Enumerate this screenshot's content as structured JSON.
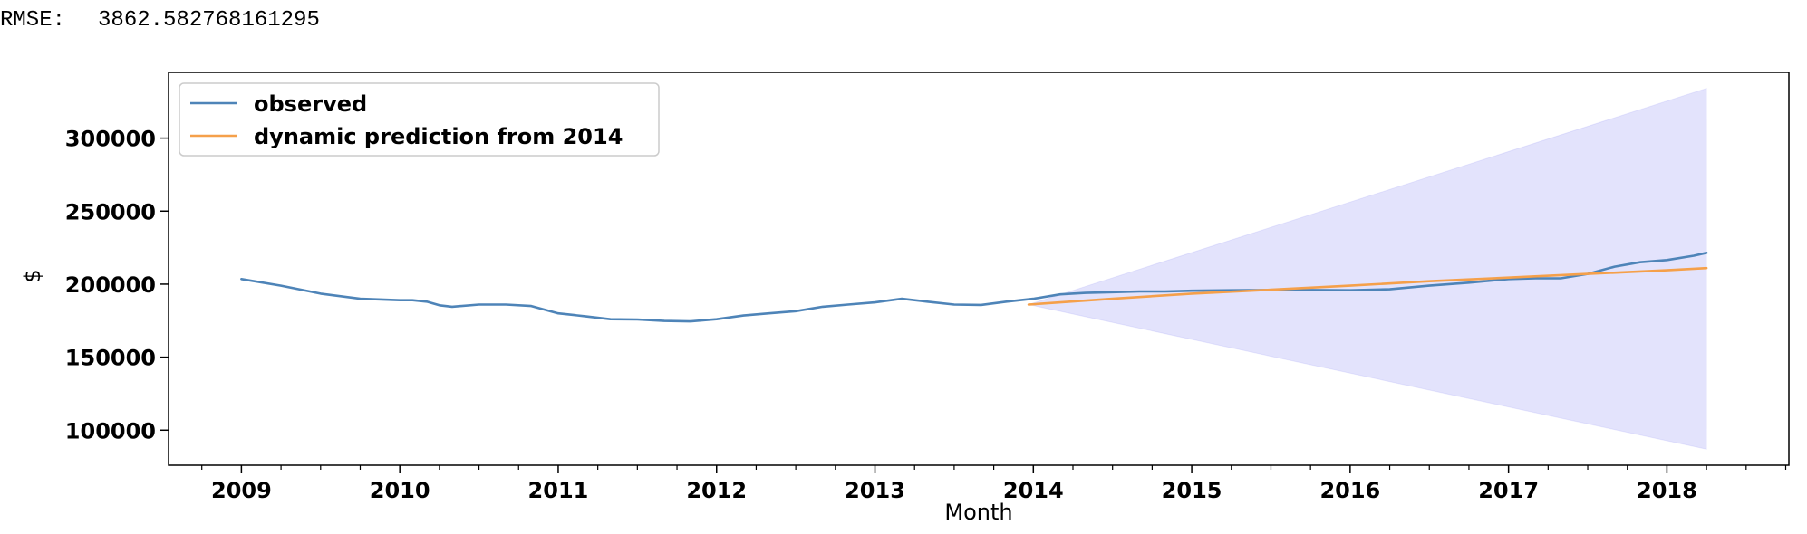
{
  "output": {
    "rmse_label": "RMSE:",
    "rmse_value": "3862.582768161295"
  },
  "chart_data": {
    "type": "line",
    "title": "",
    "xlabel": "Month",
    "ylabel": "$",
    "xlim": [
      2008.54,
      2018.77
    ],
    "ylim": [
      76000,
      345000
    ],
    "xticks": [
      2009,
      2010,
      2011,
      2012,
      2013,
      2014,
      2015,
      2016,
      2017,
      2018
    ],
    "xtick_labels": [
      "2009",
      "2010",
      "2011",
      "2012",
      "2013",
      "2014",
      "2015",
      "2016",
      "2017",
      "2018"
    ],
    "yticks": [
      100000,
      150000,
      200000,
      250000,
      300000
    ],
    "ytick_labels": [
      "100000",
      "150000",
      "200000",
      "250000",
      "300000"
    ],
    "grid": false,
    "legend": "upper-left",
    "series": [
      {
        "name": "observed",
        "color": "#4e84b8",
        "x": [
          2009.0,
          2009.25,
          2009.5,
          2009.75,
          2010.0,
          2010.08,
          2010.17,
          2010.25,
          2010.33,
          2010.5,
          2010.67,
          2010.83,
          2011.0,
          2011.17,
          2011.33,
          2011.5,
          2011.67,
          2011.83,
          2012.0,
          2012.17,
          2012.33,
          2012.5,
          2012.67,
          2012.83,
          2013.0,
          2013.17,
          2013.33,
          2013.5,
          2013.67,
          2013.83,
          2014.0,
          2014.17,
          2014.33,
          2014.5,
          2014.67,
          2014.83,
          2015.0,
          2015.25,
          2015.5,
          2015.75,
          2016.0,
          2016.25,
          2016.5,
          2016.75,
          2017.0,
          2017.17,
          2017.33,
          2017.5,
          2017.67,
          2017.83,
          2018.0,
          2018.17,
          2018.25
        ],
        "y": [
          203500,
          199000,
          193500,
          190000,
          189000,
          189000,
          188000,
          185500,
          184500,
          186000,
          186000,
          185000,
          180000,
          178000,
          176000,
          175800,
          174800,
          174500,
          176000,
          178500,
          180000,
          181500,
          184500,
          186000,
          187500,
          190000,
          188000,
          186000,
          185800,
          188000,
          190000,
          193000,
          194000,
          194500,
          195000,
          195000,
          195500,
          195800,
          196000,
          196000,
          195800,
          196500,
          199000,
          201000,
          203500,
          204000,
          204000,
          207000,
          212000,
          215000,
          216500,
          219500,
          221500
        ]
      },
      {
        "name": "dynamic prediction from 2014",
        "color": "#f5a04a",
        "x": [
          2013.97,
          2014.5,
          2015.0,
          2015.5,
          2016.0,
          2016.5,
          2017.0,
          2017.5,
          2018.0,
          2018.25
        ],
        "y": [
          186000,
          190000,
          193500,
          196200,
          199000,
          202000,
          204500,
          207000,
          209500,
          211000
        ]
      }
    ],
    "confidence_band": {
      "color": "#6666ee",
      "opacity": 0.18,
      "x": [
        2013.97,
        2018.25
      ],
      "upper": [
        186000,
        334000
      ],
      "lower": [
        186000,
        87000
      ]
    }
  }
}
